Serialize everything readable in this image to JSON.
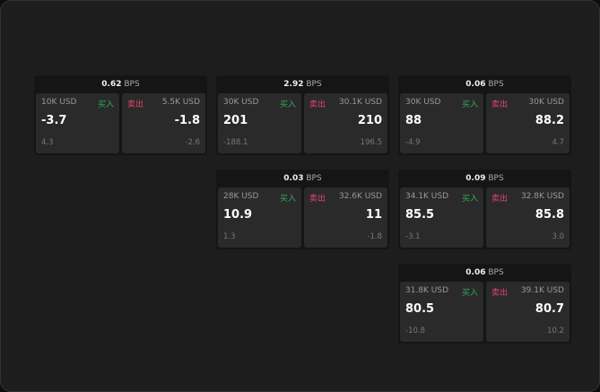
{
  "cards": [
    {
      "bps": "0.62",
      "unit": "BPS",
      "buy": {
        "size": "10K USD",
        "label": "买入",
        "price": "-3.7",
        "change": "4.3"
      },
      "sell": {
        "size": "5.5K USD",
        "label": "卖出",
        "price": "-1.8",
        "change": "-2.6"
      }
    },
    {
      "bps": "2.92",
      "unit": "BPS",
      "buy": {
        "size": "30K USD",
        "label": "买入",
        "price": "201",
        "change": "-188.1"
      },
      "sell": {
        "size": "30.1K USD",
        "label": "卖出",
        "price": "210",
        "change": "196.5"
      }
    },
    {
      "bps": "0.06",
      "unit": "BPS",
      "buy": {
        "size": "30K USD",
        "label": "买入",
        "price": "88",
        "change": "-4.9"
      },
      "sell": {
        "size": "30K USD",
        "label": "卖出",
        "price": "88.2",
        "change": "4.7"
      }
    },
    {
      "bps": "0.03",
      "unit": "BPS",
      "buy": {
        "size": "28K USD",
        "label": "买入",
        "price": "10.9",
        "change": "1.3"
      },
      "sell": {
        "size": "32.6K USD",
        "label": "卖出",
        "price": "11",
        "change": "-1.8"
      }
    },
    {
      "bps": "0.09",
      "unit": "BPS",
      "buy": {
        "size": "34.1K USD",
        "label": "买入",
        "price": "85.5",
        "change": "-3.1"
      },
      "sell": {
        "size": "32.8K USD",
        "label": "卖出",
        "price": "85.8",
        "change": "3.0"
      }
    },
    {
      "bps": "0.06",
      "unit": "BPS",
      "buy": {
        "size": "31.8K USD",
        "label": "买入",
        "price": "80.5",
        "change": "-10.8"
      },
      "sell": {
        "size": "39.1K USD",
        "label": "卖出",
        "price": "80.7",
        "change": "10.2"
      }
    }
  ]
}
